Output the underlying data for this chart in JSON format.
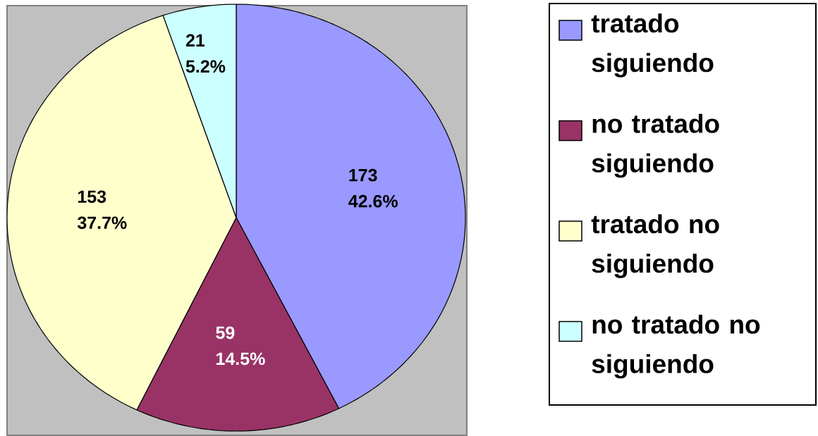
{
  "chart_data": {
    "type": "pie",
    "categories": [
      "tratado siguiendo",
      "no tratado siguiendo",
      "tratado no siguiendo",
      "no tratado no siguiendo"
    ],
    "values": [
      173,
      59,
      153,
      21
    ],
    "value_labels": [
      "173 42.6%",
      "59 14.5%",
      "153 37.7%",
      "21 5.2%"
    ],
    "colors": [
      "#9999ff",
      "#993366",
      "#ffffcc",
      "#ccffff"
    ],
    "legend": "right"
  }
}
